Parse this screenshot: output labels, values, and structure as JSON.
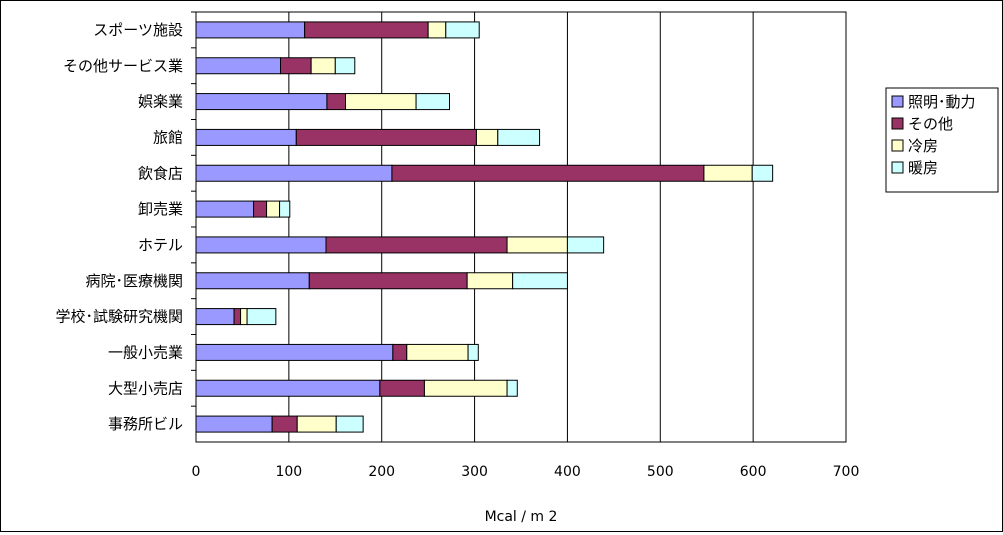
{
  "chart_data": {
    "type": "bar",
    "orientation": "horizontal",
    "stacked": true,
    "categories": [
      "スポーツ施設",
      "その他サービス業",
      "娯楽業",
      "旅館",
      "飲食店",
      "卸売業",
      "ホテル",
      "病院･医療機関",
      "学校･試験研究機関",
      "一般小売業",
      "大型小売店",
      "事務所ビル"
    ],
    "series": [
      {
        "name": "照明･動力",
        "color": "#9999FF",
        "values": [
          117,
          91,
          141,
          108,
          211,
          62,
          140,
          122,
          41,
          212,
          198,
          82
        ]
      },
      {
        "name": "その他",
        "color": "#993366",
        "values": [
          133,
          33,
          20,
          194,
          336,
          14,
          195,
          170,
          7,
          15,
          48,
          27
        ]
      },
      {
        "name": "冷房",
        "color": "#FFFFCC",
        "values": [
          19,
          26,
          76,
          23,
          52,
          14,
          65,
          49,
          7,
          66,
          89,
          42
        ]
      },
      {
        "name": "暖房",
        "color": "#CCFFFF",
        "values": [
          36,
          21,
          36,
          45,
          22,
          11,
          39,
          59,
          31,
          11,
          11,
          29
        ]
      }
    ],
    "xlim": [
      0,
      700
    ],
    "xticks": [
      "0",
      "100",
      "200",
      "300",
      "400",
      "500",
      "600",
      "700"
    ],
    "xlabel": "Mcal / m 2",
    "vertical_grid": true,
    "legend_position": "right"
  }
}
